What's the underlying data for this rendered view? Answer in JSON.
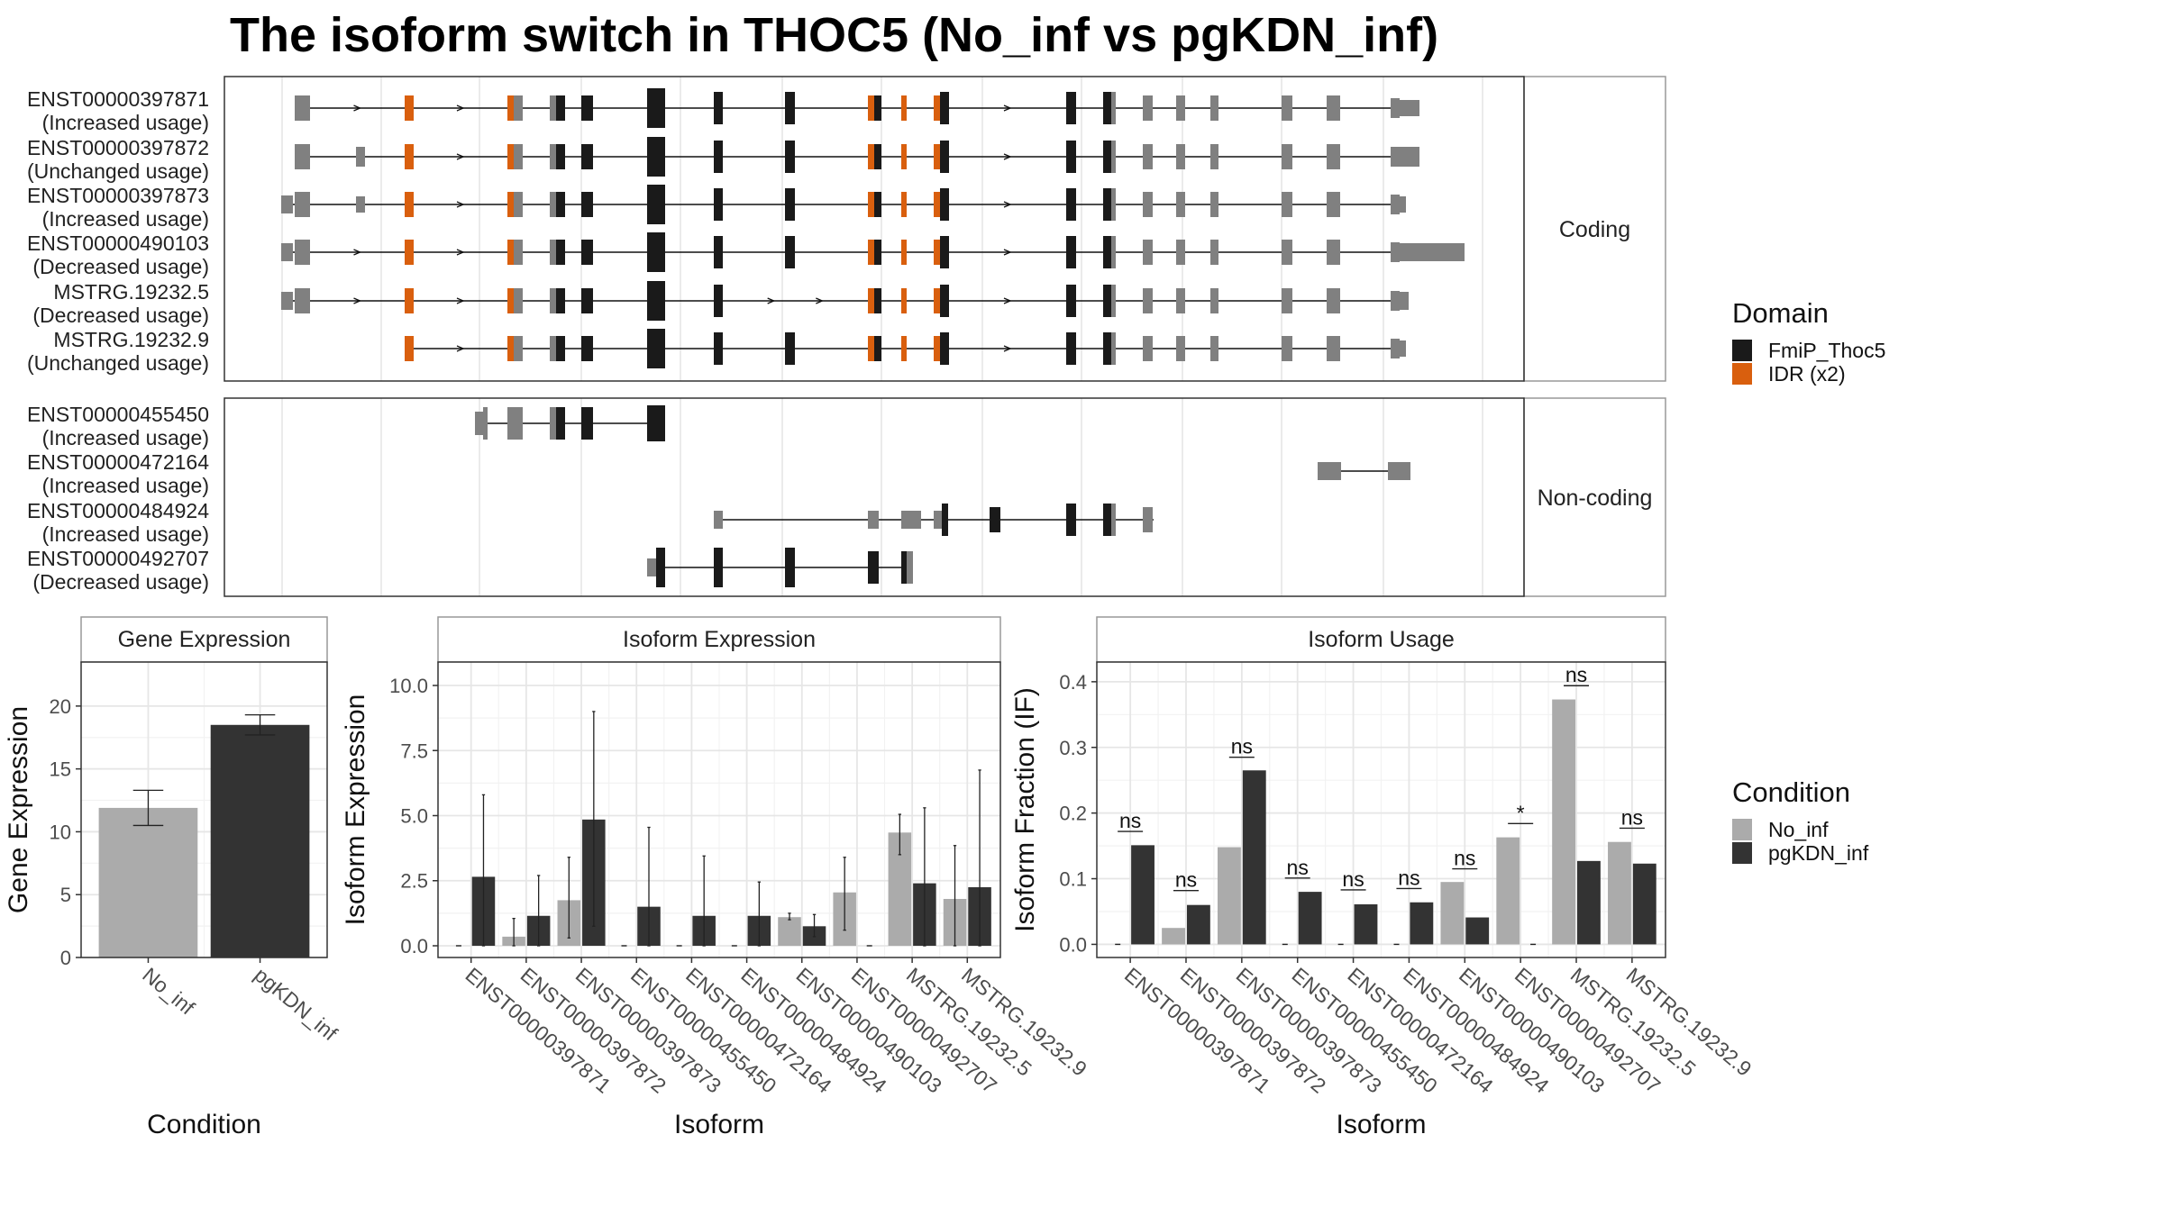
{
  "title": "The isoform switch in THOC5 (No_inf vs pgKDN_inf)",
  "colors": {
    "no_inf": "#ababab",
    "pgkdn_inf": "#333333",
    "exon": "#808080",
    "fmip": "#1a1a1a",
    "idr": "#d95f0e"
  },
  "structure": {
    "coding_strip": "Coding",
    "noncoding_strip": "Non-coding",
    "coding": [
      {
        "id": "ENST00000397871",
        "usage": "(Increased usage)"
      },
      {
        "id": "ENST00000397872",
        "usage": "(Unchanged usage)"
      },
      {
        "id": "ENST00000397873",
        "usage": "(Increased usage)"
      },
      {
        "id": "ENST00000490103",
        "usage": "(Decreased usage)"
      },
      {
        "id": "MSTRG.19232.5",
        "usage": "(Decreased usage)"
      },
      {
        "id": "MSTRG.19232.9",
        "usage": "(Unchanged usage)"
      }
    ],
    "noncoding": [
      {
        "id": "ENST00000455450",
        "usage": "(Increased usage)"
      },
      {
        "id": "ENST00000472164",
        "usage": "(Increased usage)"
      },
      {
        "id": "ENST00000484924",
        "usage": "(Increased usage)"
      },
      {
        "id": "ENST00000492707",
        "usage": "(Decreased usage)"
      }
    ]
  },
  "domain_legend": {
    "title": "Domain",
    "items": [
      {
        "label": "FmiP_Thoc5",
        "color": "#1a1a1a"
      },
      {
        "label": "IDR (x2)",
        "color": "#d95f0e"
      }
    ]
  },
  "condition_legend": {
    "title": "Condition",
    "items": [
      {
        "label": "No_inf",
        "color": "#ababab"
      },
      {
        "label": "pgKDN_inf",
        "color": "#333333"
      }
    ]
  },
  "chart_data": [
    {
      "type": "bar",
      "title": "Gene Expression",
      "xlabel": "Condition",
      "ylabel": "Gene Expression",
      "ylim": [
        0,
        23.5
      ],
      "yticks": [
        0,
        5,
        10,
        15,
        20
      ],
      "categories": [
        "No_inf",
        "pgKDN_inf"
      ],
      "values": [
        11.9,
        18.5
      ],
      "errors": [
        [
          10.5,
          13.3
        ],
        [
          17.7,
          19.3
        ]
      ]
    },
    {
      "type": "bar",
      "title": "Isoform Expression",
      "xlabel": "Isoform",
      "ylabel": "Isoform Expression",
      "ylim": [
        -0.45,
        10.9
      ],
      "yticks": [
        0.0,
        2.5,
        5.0,
        7.5,
        10.0
      ],
      "categories": [
        "ENST00000397871",
        "ENST00000397872",
        "ENST00000397873",
        "ENST00000455450",
        "ENST00000472164",
        "ENST00000484924",
        "ENST00000490103",
        "ENST00000492707",
        "MSTRG.19232.5",
        "MSTRG.19232.9"
      ],
      "series": [
        {
          "name": "No_inf",
          "values": [
            0.0,
            0.35,
            1.75,
            0.0,
            0.0,
            0.0,
            1.1,
            2.05,
            4.35,
            1.8
          ],
          "errors": [
            [
              0,
              0
            ],
            [
              0,
              1.05
            ],
            [
              0.3,
              3.4
            ],
            [
              0,
              0
            ],
            [
              0,
              0
            ],
            [
              0,
              0
            ],
            [
              1.0,
              1.25
            ],
            [
              0.6,
              3.4
            ],
            [
              3.5,
              5.05
            ],
            [
              0,
              3.85
            ]
          ]
        },
        {
          "name": "pgKDN_inf",
          "values": [
            2.65,
            1.15,
            4.85,
            1.5,
            1.15,
            1.15,
            0.75,
            0.0,
            2.4,
            2.25
          ],
          "errors": [
            [
              0,
              5.8
            ],
            [
              0,
              2.7
            ],
            [
              0.75,
              9.0
            ],
            [
              0,
              4.55
            ],
            [
              0,
              3.45
            ],
            [
              0,
              2.45
            ],
            [
              0.35,
              1.2
            ],
            [
              0,
              0
            ],
            [
              0,
              5.3
            ],
            [
              0,
              6.75
            ]
          ]
        }
      ]
    },
    {
      "type": "bar",
      "title": "Isoform Usage",
      "xlabel": "Isoform",
      "ylabel": "Isoform Fraction (IF)",
      "ylim": [
        -0.02,
        0.43
      ],
      "yticks": [
        0.0,
        0.1,
        0.2,
        0.3,
        0.4
      ],
      "categories": [
        "ENST00000397871",
        "ENST00000397872",
        "ENST00000397873",
        "ENST00000455450",
        "ENST00000472164",
        "ENST00000484924",
        "ENST00000490103",
        "ENST00000492707",
        "MSTRG.19232.5",
        "MSTRG.19232.9"
      ],
      "series": [
        {
          "name": "No_inf",
          "values": [
            0.0,
            0.025,
            0.148,
            0.0,
            0.0,
            0.0,
            0.095,
            0.163,
            0.373,
            0.156
          ]
        },
        {
          "name": "pgKDN_inf",
          "values": [
            0.151,
            0.06,
            0.265,
            0.08,
            0.061,
            0.064,
            0.041,
            0.0,
            0.127,
            0.123
          ]
        }
      ],
      "significance": [
        "ns",
        "ns",
        "ns",
        "ns",
        "ns",
        "ns",
        "ns",
        "*",
        "ns",
        "ns"
      ],
      "significance_y": [
        0.172,
        0.082,
        0.285,
        0.101,
        0.083,
        0.085,
        0.115,
        0.184,
        0.394,
        0.177
      ]
    }
  ]
}
